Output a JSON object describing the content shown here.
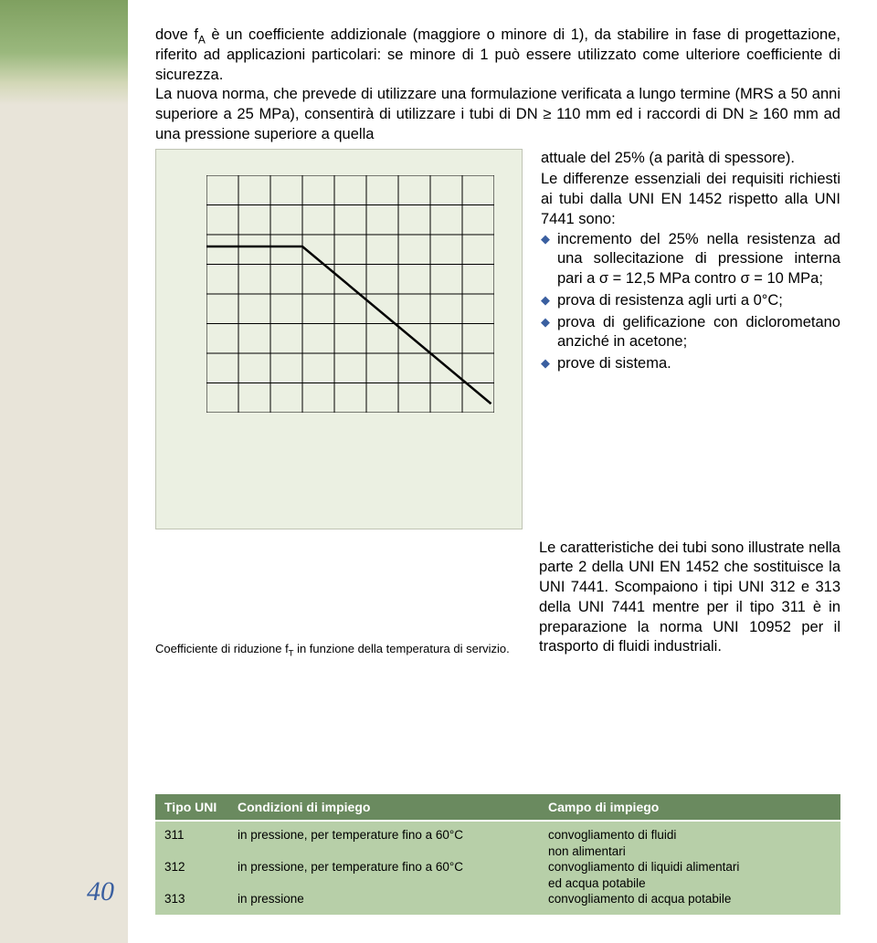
{
  "page_number": "40",
  "para1": "dove f",
  "para1_sub": "A",
  "para1_rest": " è un coefficiente addizionale (maggiore o minore di 1), da stabilire in fase di progettazione, riferito ad applicazioni particolari: se minore di 1 può essere utilizzato come ulteriore coefficiente di sicurezza.",
  "para2": "La nuova norma, che prevede di utilizzare una formulazione verificata a lungo termine (MRS a 50 anni superiore a 25 MPa), consentirà di utilizzare i tubi di DN ≥ 110 mm ed i raccordi di DN ≥ 160 mm ad una pressione superiore a quella",
  "right_text_line": "attuale del 25% (a parità di spessore).",
  "right_text_para": "Le differenze essenziali dei requisiti richiesti ai tubi dalla UNI EN 1452 rispetto alla UNI 7441 sono:",
  "bullets": [
    "incremento del 25% nella resistenza ad una sollecitazione di pressione interna pari a σ = 12,5 MPa contro σ = 10 MPa;",
    "prova di resistenza agli urti a 0°C;",
    "prova di gelificazione con diclorometano anziché in acetone;",
    "prove di sistema."
  ],
  "right_para2": "Le caratteristiche dei tubi sono illustrate nella parte 2 della UNI EN 1452 che sostituisce la UNI 7441. Scompaiono i tipi UNI 312 e 313 della UNI 7441 mentre per il tipo 311 è in preparazione la norma UNI 10952 per il trasporto di fluidi industriali.",
  "chart_caption_pre": "Coefficiente di riduzione f",
  "chart_caption_sub": "T",
  "chart_caption_post": " in funzione della temperatura di servizio.",
  "chart": {
    "type": "line",
    "x_range": [
      0,
      9
    ],
    "y_range": [
      0,
      8
    ],
    "grid_color": "#000000",
    "background_color": "#ebf0e2",
    "line_color": "#000000",
    "line_width": 2.5,
    "points": [
      [
        0,
        5.6
      ],
      [
        3,
        5.6
      ],
      [
        8.9,
        0.3
      ]
    ]
  },
  "table": {
    "header": [
      "Tipo UNI",
      "Condizioni di impiego",
      "Campo di impiego"
    ],
    "header_bg": "#6a8a5f",
    "header_color": "#ffffff",
    "body_bg": "#b7cfa8",
    "rows": [
      [
        "311",
        "in pressione, per temperature fino a 60°C",
        "convogliamento di fluidi"
      ],
      [
        "",
        "",
        "non alimentari"
      ],
      [
        "312",
        "in pressione, per temperature fino a 60°C",
        "convogliamento di liquidi alimentari"
      ],
      [
        "",
        "",
        "ed acqua potabile"
      ],
      [
        "313",
        "in pressione",
        "convogliamento di acqua potabile"
      ]
    ]
  },
  "colors": {
    "bullet_diamond": "#3a5fa0",
    "page_number": "#3a5fa0",
    "left_band": "#e8e4d9"
  }
}
